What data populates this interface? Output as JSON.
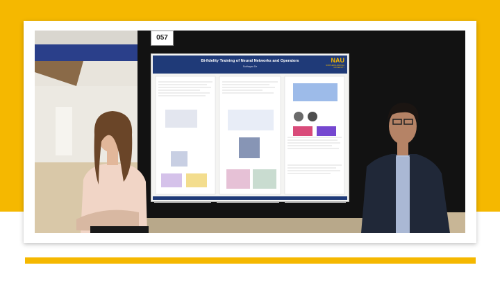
{
  "booth_number": "057",
  "poster": {
    "title": "Bi-fidelity Training of Neural Networks and Operators",
    "authors": "Subhayan De",
    "logo": "NAU",
    "logo_sub": "NORTHERN ARIZONA UNIVERSITY"
  },
  "colors": {
    "accent": "#f5b800",
    "poster_header": "#1f3a78"
  }
}
